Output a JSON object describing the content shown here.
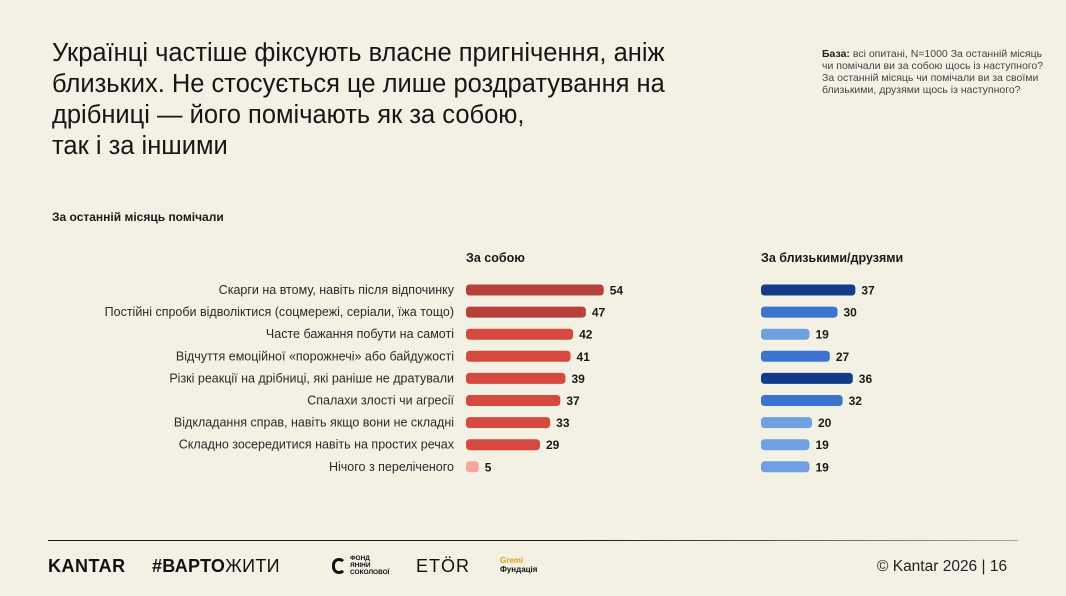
{
  "title_lines": [
    "Українці частіше фіксують власне пригнічення, аніж",
    "близьких. Не стосується це лише  роздратування на",
    "дрібниці — його помічають як за собою,",
    "так і за іншими"
  ],
  "base": {
    "label": "База:",
    "text": " всі опитані, N=1000 За останній місяць чи помічали ви за собою щось із наступного? За останній місяць чи помічали ви за своїми близькими, друзями щось із наступного?"
  },
  "section_title": "За останній місяць помічали",
  "footer": {
    "kantar": "KANTAR",
    "varto_bold": "#ВАРТО",
    "varto_rest": "ЖИТИ",
    "yanina_lines": [
      "ФОНД",
      "ЯНІНИ",
      "СОКОЛОВОЇ"
    ],
    "etor": "ETÖR",
    "gremi_lines": [
      "Gremi",
      "Фундація"
    ],
    "copyright": "© Kantar 2026 | 16"
  },
  "colors": {
    "self_dark": "#b8403a",
    "self_mid": "#d5493f",
    "self_light": "#f4a79b",
    "others_dark": "#123b88",
    "others_mid": "#3a74cf",
    "others_light": "#6fa1e2"
  },
  "chart_data": {
    "type": "bar",
    "orientation": "horizontal",
    "categories": [
      "Скарги на втому, навіть після відпочинку",
      "Постійні спроби відволіктися (соцмережі, серіали, їжа тощо)",
      "Часте бажання побути на самоті",
      "Відчуття емоційної «порожнечі» або байдужості",
      "Різкі реакції на дрібниці, які раніше не дратували",
      "Спалахи злості чи агресії",
      "Відкладання справ, навіть якщо вони не складні",
      "Складно зосередитися навіть на простих речах",
      "Нічого з переліченого"
    ],
    "series": [
      {
        "name": "За собою",
        "values": [
          54,
          47,
          42,
          41,
          39,
          37,
          33,
          29,
          5
        ],
        "shades": [
          "dark",
          "dark",
          "mid",
          "mid",
          "mid",
          "mid",
          "mid",
          "mid",
          "light"
        ]
      },
      {
        "name": "За близькими/друзями",
        "values": [
          37,
          30,
          19,
          27,
          36,
          32,
          20,
          19,
          19
        ],
        "shades": [
          "dark",
          "mid",
          "light",
          "mid",
          "dark",
          "mid",
          "light",
          "light",
          "light"
        ]
      }
    ],
    "data_labels": true,
    "grid": false
  }
}
